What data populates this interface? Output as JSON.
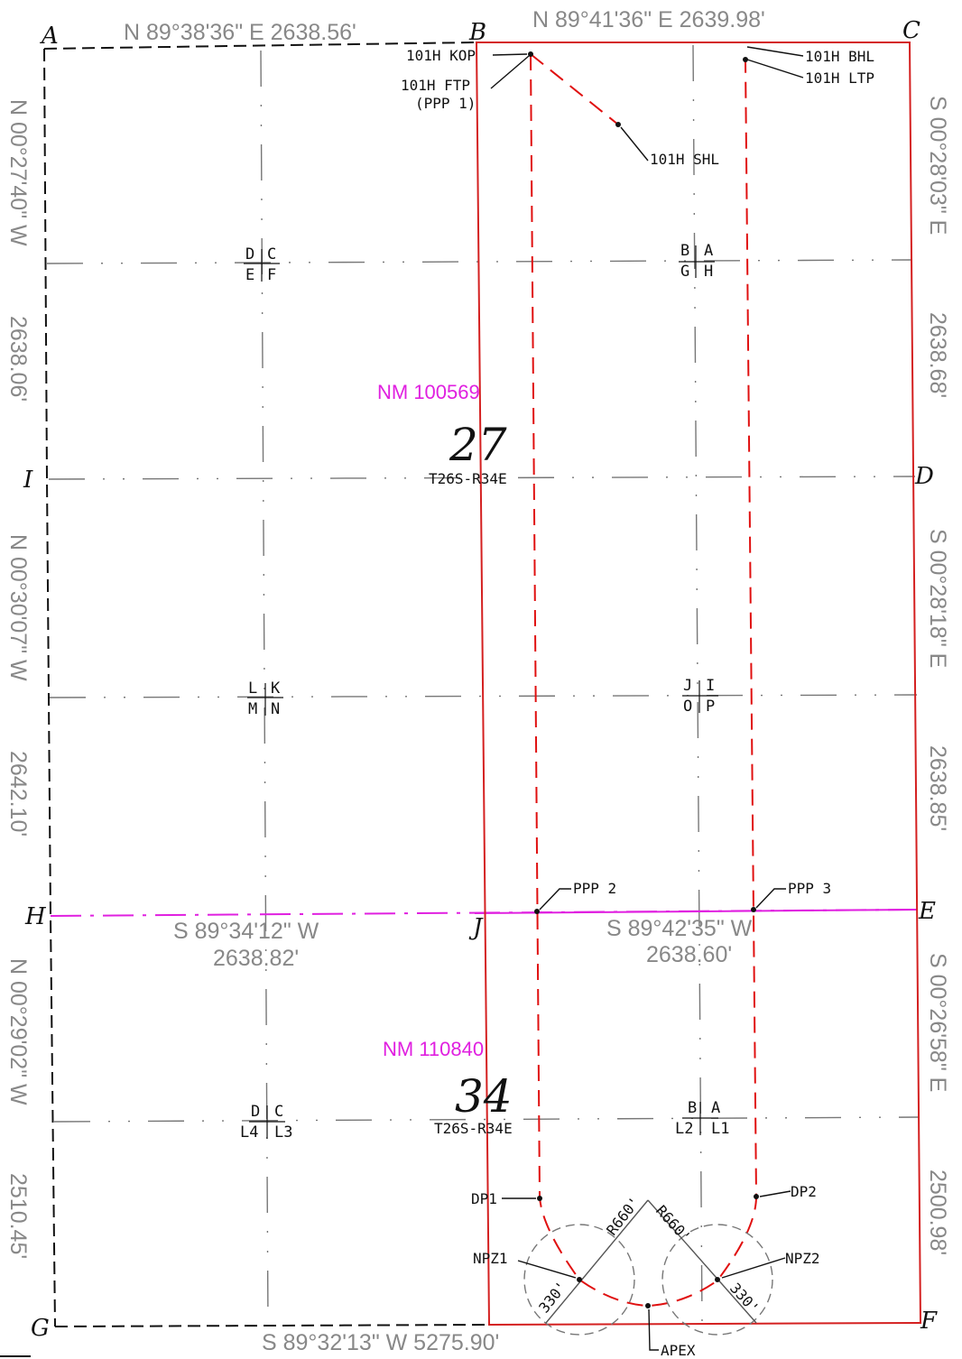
{
  "boundary_calls": {
    "north_west": "N 89°38'36\" E   2638.56'",
    "north_east": "N 89°41'36\" E   2639.98'",
    "west_upper_1": "N 00°27'40\" W",
    "west_upper_2": "2638.06'",
    "west_middle_1": "N 00°30'07\" W",
    "west_middle_2": "2642.10'",
    "west_lower_1": "N 00°29'02\" W",
    "west_lower_2": "2510.45'",
    "east_upper_1": "S 00°28'03\" E",
    "east_upper_2": "2638.68'",
    "east_middle_1": "S 00°28'18\" E",
    "east_middle_2": "2638.85'",
    "east_lower_1": "S 00°26'58\" E",
    "east_lower_2": "2500.98'",
    "mid_west_1": "S 89°34'12\" W",
    "mid_west_2": "2638.82'",
    "mid_east_1": "S 89°42'35\" W",
    "mid_east_2": "2638.60'",
    "south": "S 89°32'13\" W   5275.90'"
  },
  "corners": {
    "a": "A",
    "b": "B",
    "c": "C",
    "d": "D",
    "e": "E",
    "f": "F",
    "g": "G",
    "h": "H",
    "i": "I",
    "j": "J"
  },
  "well_points": {
    "kop": "101H KOP",
    "ftp_1": "101H FTP",
    "ftp_2": "(PPP 1)",
    "shl": "101H SHL",
    "bhl": "101H BHL",
    "ltp": "101H LTP",
    "ppp2": "PPP 2",
    "ppp3": "PPP 3",
    "dp1": "DP1",
    "dp2": "DP2",
    "npz1": "NPZ1",
    "npz2": "NPZ2",
    "apex": "APEX",
    "r660_left": "R660'",
    "r660_right": "R660'",
    "d330_left": "330'",
    "d330_right": "330'"
  },
  "sections": {
    "upper": {
      "lease": "NM 100569",
      "number": "27",
      "township": "T26S-R34E"
    },
    "lower": {
      "lease": "NM 110840",
      "number": "34",
      "township": "T26S-R34E"
    }
  },
  "quarter_labels": {
    "s27_nw": {
      "tl": "D",
      "tr": "C",
      "bl": "E",
      "br": "F"
    },
    "s27_ne": {
      "tl": "B",
      "tr": "A",
      "bl": "G",
      "br": "H"
    },
    "s27_sw": {
      "tl": "L",
      "tr": "K",
      "bl": "M",
      "br": "N"
    },
    "s27_se": {
      "tl": "J",
      "tr": "I",
      "bl": "O",
      "br": "P"
    },
    "s34_w": {
      "tl": "D",
      "tr": "C",
      "bl": "L4",
      "br": "L3"
    },
    "s34_e": {
      "tl": "B",
      "tr": "A",
      "bl": "L2",
      "br": "L1"
    }
  },
  "colors": {
    "boundary": "#111111",
    "grid": "#777777",
    "wellbore": "#e01010",
    "lease_line": "#e020e0",
    "bearing_text": "#888888"
  }
}
